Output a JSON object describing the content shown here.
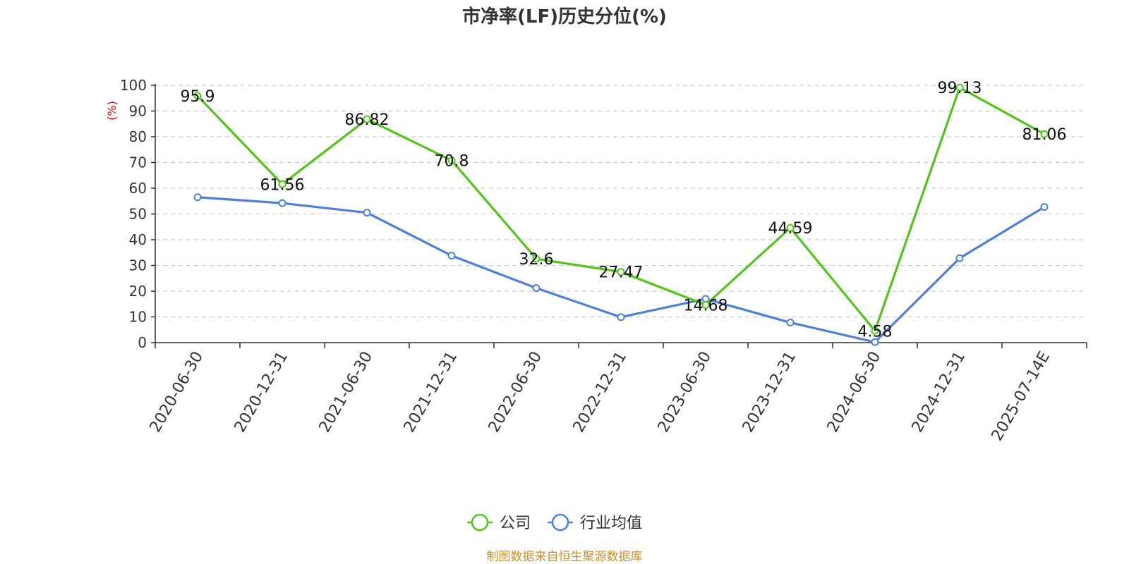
{
  "chart_data": {
    "type": "line",
    "title": "市净率(LF)历史分位(%)",
    "ylabel": "(%)",
    "ylim": [
      0,
      100
    ],
    "yticks": [
      0,
      10,
      20,
      30,
      40,
      50,
      60,
      70,
      80,
      90,
      100
    ],
    "categories": [
      "2020-06-30",
      "2020-12-31",
      "2021-06-30",
      "2021-12-31",
      "2022-06-30",
      "2022-12-31",
      "2023-06-30",
      "2023-12-31",
      "2024-06-30",
      "2024-12-31",
      "2025-07-14E"
    ],
    "series": [
      {
        "name": "公司",
        "color": "#52c41a",
        "values": [
          95.9,
          61.56,
          86.82,
          70.8,
          32.6,
          27.47,
          14.68,
          44.59,
          4.58,
          99.13,
          81.06
        ],
        "labels": [
          "95.9",
          "61.56",
          "86.82",
          "70.8",
          "32.6",
          "27.47",
          "14.68",
          "44.59",
          "4.58",
          "99.13",
          "81.06"
        ]
      },
      {
        "name": "行业均值",
        "color": "#4e7fdc",
        "values": [
          56.5,
          54.2,
          50.5,
          33.8,
          21.2,
          9.9,
          17.0,
          7.8,
          0.2,
          32.8,
          52.7
        ]
      }
    ],
    "grid": true,
    "legend": "bottom-center"
  },
  "source_text": "制图数据来自恒生聚源数据库",
  "colors": {
    "source": "#c8902a",
    "axis": "#333333",
    "grid": "#cccccc",
    "unit": "#e00000"
  }
}
